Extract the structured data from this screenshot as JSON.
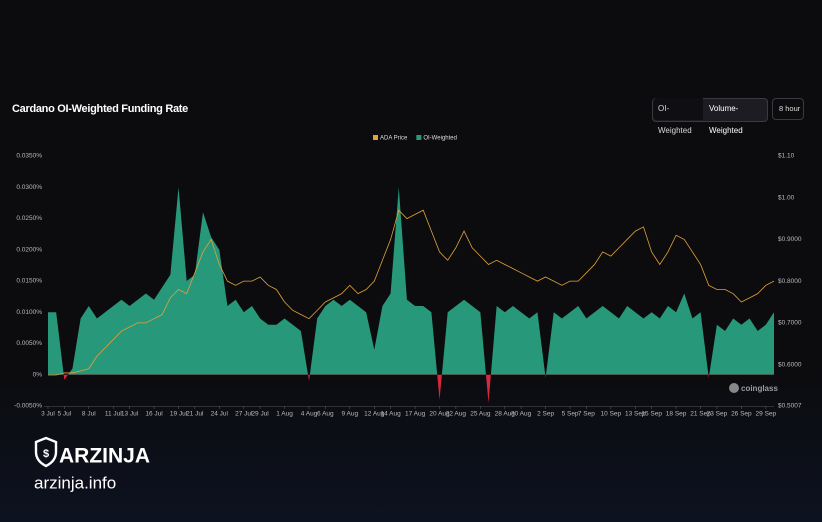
{
  "header": {
    "title": "Cardano OI-Weighted Funding Rate"
  },
  "controls": {
    "tabs": [
      "OI-Weighted",
      "Volume-Weighted"
    ],
    "interval": "8 hour"
  },
  "watermark": "coinglass",
  "branding": {
    "name": "ARZINJA",
    "site": "arzinja.info"
  },
  "chart_data": {
    "type": "area",
    "categories": [
      "3 Jul",
      null,
      "5 Jul",
      null,
      null,
      "8 Jul",
      null,
      null,
      "11 Jul",
      null,
      "13 Jul",
      null,
      null,
      "16 Jul",
      null,
      null,
      "19 Jul",
      null,
      "21 Jul",
      null,
      null,
      "24 Jul",
      null,
      null,
      "27 Jul",
      null,
      "29 Jul",
      null,
      null,
      "1 Aug",
      null,
      null,
      "4 Aug",
      null,
      "6 Aug",
      null,
      null,
      "9 Aug",
      null,
      null,
      "12 Aug",
      null,
      "14 Aug",
      null,
      null,
      "17 Aug",
      null,
      null,
      "20 Aug",
      null,
      "22 Aug",
      null,
      null,
      "25 Aug",
      null,
      null,
      "28 Aug",
      null,
      "30 Aug",
      null,
      null,
      "2 Sep",
      null,
      null,
      "5 Sep",
      null,
      "7 Sep",
      null,
      null,
      "10 Sep",
      null,
      null,
      "13 Sep",
      null,
      "15 Sep",
      null,
      null,
      "18 Sep",
      null,
      null,
      "21 Sep",
      null,
      "23 Sep",
      null,
      null,
      "26 Sep",
      null,
      null,
      "29 Sep",
      null
    ],
    "series": [
      {
        "name": "ADA Price",
        "type": "line",
        "axis": "y2",
        "color": "#e0a23c",
        "values": [
          0.575,
          0.575,
          0.58,
          0.58,
          0.585,
          0.59,
          0.62,
          0.64,
          0.66,
          0.68,
          0.69,
          0.7,
          0.7,
          0.71,
          0.72,
          0.76,
          0.78,
          0.77,
          0.82,
          0.87,
          0.9,
          0.84,
          0.8,
          0.79,
          0.8,
          0.8,
          0.81,
          0.79,
          0.78,
          0.75,
          0.73,
          0.72,
          0.71,
          0.73,
          0.75,
          0.76,
          0.77,
          0.79,
          0.77,
          0.78,
          0.8,
          0.85,
          0.9,
          0.97,
          0.95,
          0.96,
          0.97,
          0.92,
          0.87,
          0.85,
          0.88,
          0.92,
          0.88,
          0.86,
          0.84,
          0.85,
          0.84,
          0.83,
          0.82,
          0.81,
          0.8,
          0.81,
          0.8,
          0.79,
          0.8,
          0.8,
          0.82,
          0.84,
          0.87,
          0.86,
          0.88,
          0.9,
          0.92,
          0.93,
          0.87,
          0.84,
          0.87,
          0.91,
          0.9,
          0.87,
          0.84,
          0.79,
          0.78,
          0.78,
          0.77,
          0.75,
          0.76,
          0.77,
          0.79,
          0.8
        ]
      },
      {
        "name": "OI-Weighted",
        "type": "area",
        "color": "#27987a",
        "negative_color": "#d3283f",
        "values": [
          0.01,
          0.01,
          -0.0008,
          0.001,
          0.009,
          0.011,
          0.009,
          0.01,
          0.011,
          0.012,
          0.011,
          0.012,
          0.013,
          0.012,
          0.014,
          0.016,
          0.03,
          0.015,
          0.016,
          0.026,
          0.022,
          0.02,
          0.011,
          0.012,
          0.01,
          0.011,
          0.009,
          0.008,
          0.008,
          0.009,
          0.008,
          0.007,
          -0.001,
          0.009,
          0.011,
          0.012,
          0.011,
          0.012,
          0.011,
          0.01,
          0.004,
          0.011,
          0.013,
          0.03,
          0.012,
          0.011,
          0.011,
          0.01,
          -0.004,
          0.01,
          0.011,
          0.012,
          0.011,
          0.01,
          -0.0045,
          0.011,
          0.01,
          0.011,
          0.01,
          0.009,
          0.01,
          -0.0005,
          0.01,
          0.009,
          0.01,
          0.011,
          0.009,
          0.01,
          0.011,
          0.01,
          0.009,
          0.011,
          0.01,
          0.009,
          0.01,
          0.009,
          0.011,
          0.01,
          0.013,
          0.009,
          0.01,
          -0.0005,
          0.008,
          0.007,
          0.009,
          0.008,
          0.009,
          0.007,
          0.008,
          0.01
        ]
      }
    ],
    "ylim": [
      -0.005,
      0.035
    ],
    "yticks": [
      {
        "value": -0.005,
        "label": "-0.0050%"
      },
      {
        "value": 0,
        "label": "0%"
      },
      {
        "value": 0.005,
        "label": "0.0050%"
      },
      {
        "value": 0.01,
        "label": "0.0100%"
      },
      {
        "value": 0.015,
        "label": "0.0150%"
      },
      {
        "value": 0.02,
        "label": "0.0200%"
      },
      {
        "value": 0.025,
        "label": "0.0250%"
      },
      {
        "value": 0.03,
        "label": "0.0300%"
      },
      {
        "value": 0.035,
        "label": "0.0350%"
      }
    ],
    "y2lim": [
      0.5007,
      1.1
    ],
    "y2ticks": [
      {
        "value": 0.5007,
        "label": "$0.5007"
      },
      {
        "value": 0.6,
        "label": "$0.6000"
      },
      {
        "value": 0.7,
        "label": "$0.7000"
      },
      {
        "value": 0.8,
        "label": "$0.8000"
      },
      {
        "value": 0.9,
        "label": "$0.9000"
      },
      {
        "value": 1,
        "label": "$1.00"
      },
      {
        "value": 1.1,
        "label": "$1.10"
      }
    ],
    "grid": false,
    "legend": "top"
  }
}
